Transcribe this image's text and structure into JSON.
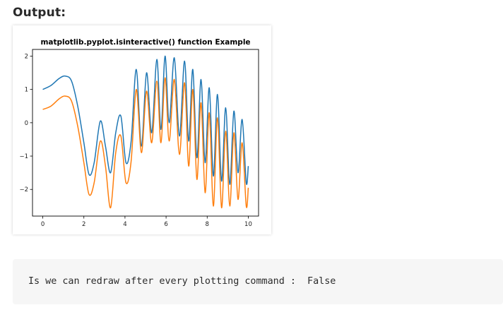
{
  "heading": "Output:",
  "output_text": "Is we can redraw after every plotting command :  False",
  "colors": {
    "series_blue": "#1f77b4",
    "series_orange": "#ff7f0e",
    "code_background": "#f6f6f6"
  },
  "chart_data": {
    "type": "line",
    "title": "matplotlib.pyplot.isinteractive() function Example",
    "xlabel": "",
    "ylabel": "",
    "xlim": [
      -0.5,
      10.5
    ],
    "ylim": [
      -2.8,
      2.2
    ],
    "x_ticks": [
      0,
      2,
      4,
      6,
      8,
      10
    ],
    "y_ticks": [
      2,
      1,
      0,
      -1,
      -2
    ],
    "y_tick_labels": [
      "2",
      "1",
      "0",
      "−1",
      "−2"
    ],
    "grid": false,
    "legend": "none",
    "series": [
      {
        "color": "#1f77b4",
        "x": [
          0,
          0.4,
          0.8,
          1.1,
          1.4,
          1.7,
          2.0,
          2.25,
          2.5,
          2.8,
          3.05,
          3.3,
          3.55,
          3.8,
          4.05,
          4.3,
          4.55,
          4.8,
          5.05,
          5.3,
          5.55,
          5.75,
          5.95,
          6.15,
          6.4,
          6.65,
          6.9,
          7.1,
          7.3,
          7.5,
          7.7,
          7.9,
          8.1,
          8.3,
          8.5,
          8.7,
          8.9,
          9.1,
          9.3,
          9.5,
          9.7,
          9.9,
          10.0
        ],
        "y": [
          1.0,
          1.12,
          1.33,
          1.4,
          1.25,
          0.5,
          -0.6,
          -1.55,
          -1.2,
          0.05,
          -0.7,
          -1.5,
          -0.3,
          0.2,
          -1.2,
          -0.55,
          1.6,
          -0.7,
          1.5,
          -0.3,
          1.9,
          -0.2,
          2.0,
          0.0,
          1.95,
          -0.4,
          1.85,
          -0.55,
          1.6,
          -1.05,
          1.3,
          -1.2,
          1.05,
          -1.6,
          0.85,
          -1.75,
          0.45,
          -1.85,
          0.35,
          -1.5,
          0.1,
          -1.8,
          -1.3
        ]
      },
      {
        "color": "#ff7f0e",
        "x": [
          0,
          0.4,
          0.8,
          1.1,
          1.4,
          1.7,
          2.0,
          2.25,
          2.5,
          2.8,
          3.05,
          3.3,
          3.55,
          3.8,
          4.05,
          4.3,
          4.55,
          4.8,
          5.05,
          5.3,
          5.55,
          5.75,
          5.95,
          6.15,
          6.4,
          6.65,
          6.9,
          7.1,
          7.3,
          7.5,
          7.7,
          7.9,
          8.1,
          8.3,
          8.5,
          8.7,
          8.9,
          9.1,
          9.3,
          9.5,
          9.7,
          9.9,
          10.0
        ],
        "y": [
          0.4,
          0.5,
          0.72,
          0.8,
          0.65,
          -0.1,
          -1.2,
          -2.15,
          -1.8,
          -0.55,
          -1.3,
          -2.55,
          -0.9,
          -0.4,
          -1.8,
          -1.15,
          1.0,
          -0.9,
          0.95,
          -0.6,
          1.25,
          -0.6,
          1.35,
          -0.55,
          1.3,
          -0.95,
          1.2,
          -1.3,
          1.0,
          -1.7,
          0.6,
          -2.1,
          0.3,
          -2.5,
          0.15,
          -2.55,
          -0.25,
          -2.5,
          -0.3,
          -2.3,
          -0.6,
          -2.5,
          -1.95
        ]
      }
    ]
  }
}
